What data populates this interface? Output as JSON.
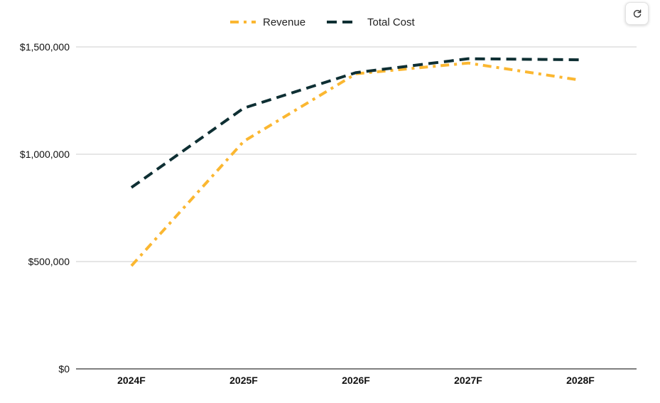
{
  "chart_data": {
    "type": "line",
    "categories": [
      "2024F",
      "2025F",
      "2026F",
      "2027F",
      "2028F"
    ],
    "series": [
      {
        "name": "Revenue",
        "values": [
          480000,
          1060000,
          1375000,
          1425000,
          1345000
        ],
        "color": "#FBB731",
        "dash": "dash-dot"
      },
      {
        "name": "Total Cost",
        "values": [
          845000,
          1215000,
          1380000,
          1445000,
          1440000
        ],
        "color": "#0E2F33",
        "dash": "dashed"
      }
    ],
    "ylim": [
      0,
      1500000
    ],
    "yticks": [
      0,
      500000,
      1000000,
      1500000
    ],
    "ytick_labels": [
      "$0",
      "$500,000",
      "$1,000,000",
      "$1,500,000"
    ],
    "title": "",
    "xlabel": "",
    "ylabel": "",
    "legend_position": "top",
    "grid": true
  },
  "toolbar": {
    "refresh_icon": "refresh-icon"
  }
}
